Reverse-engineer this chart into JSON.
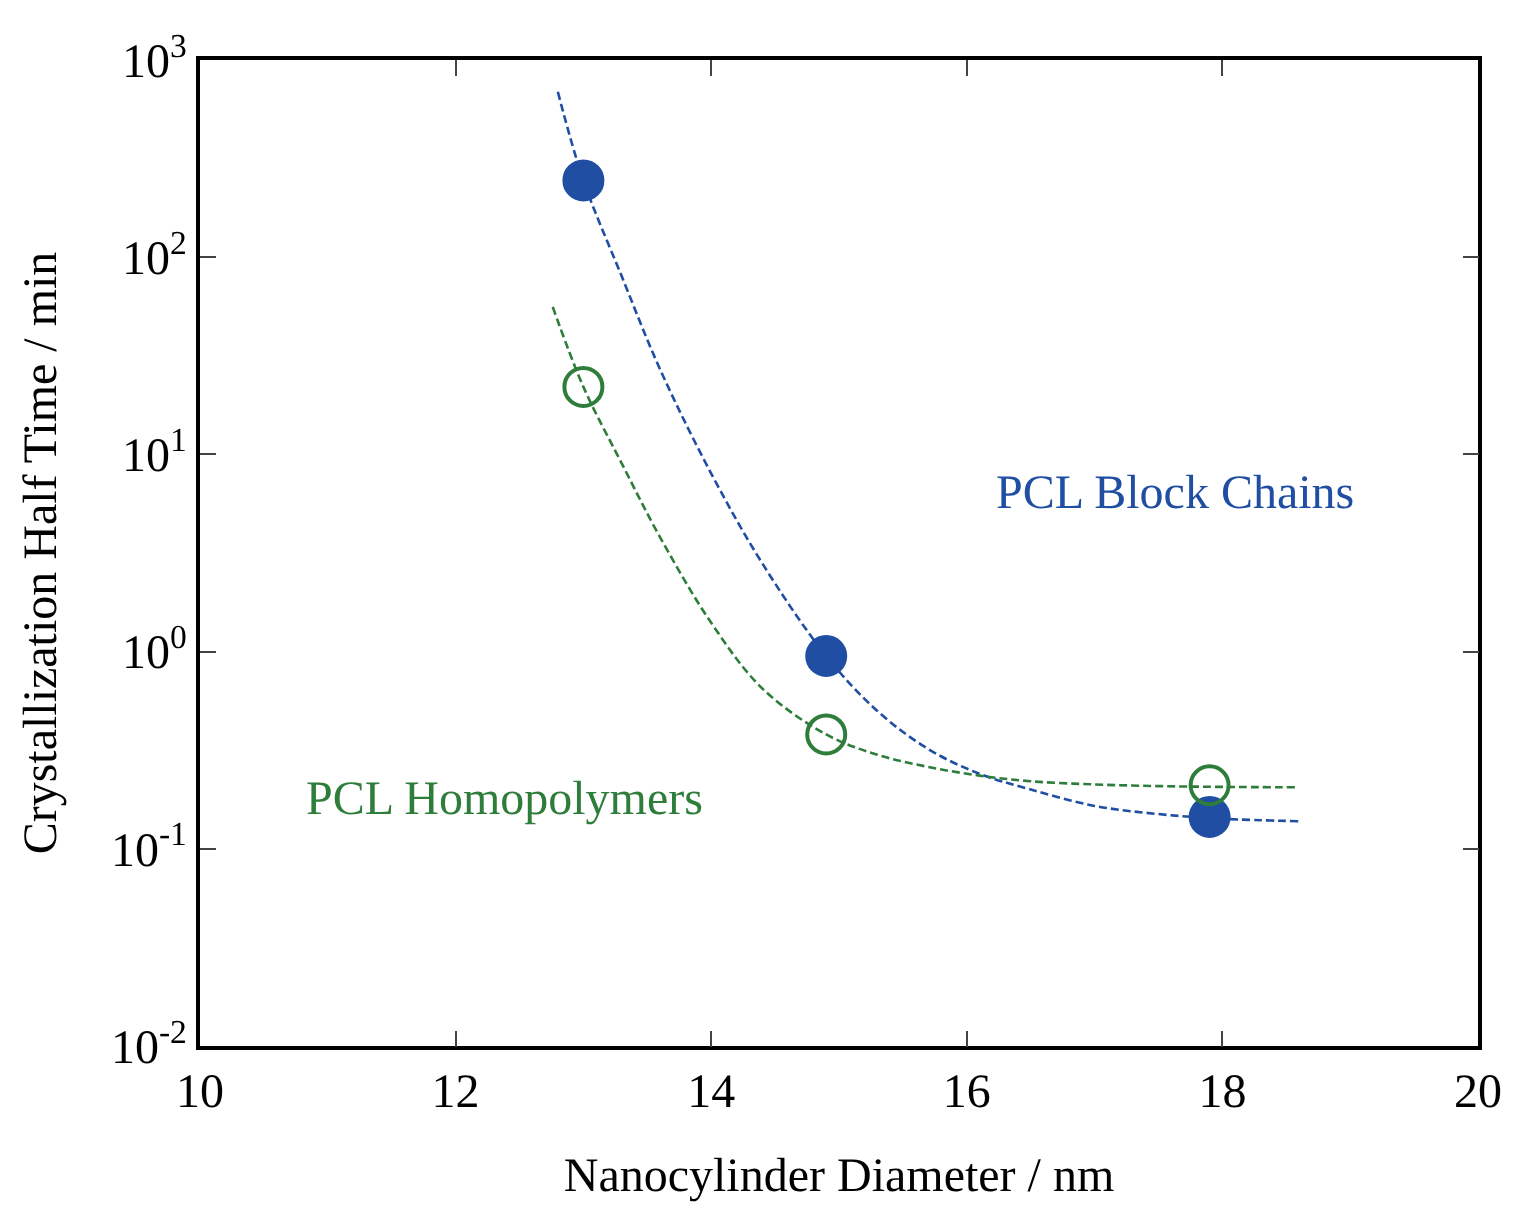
{
  "chart_data": {
    "type": "scatter",
    "xlabel": "Nanocylinder Diameter / nm",
    "ylabel": "Crystallization Half Time / min",
    "log": "y",
    "legend": false,
    "xlim": [
      10,
      20
    ],
    "xticks": [
      10,
      12,
      14,
      16,
      18,
      20
    ],
    "ylim": [
      0.01,
      1000
    ],
    "yticks": [
      {
        "value": 0.01,
        "label": "10$^{-2}$"
      },
      {
        "value": 0.1,
        "label": "10$^{-1}$"
      },
      {
        "value": 1,
        "label": "10$^{0}$"
      },
      {
        "value": 10,
        "label": "10$^{1}$"
      },
      {
        "value": 100,
        "label": "10$^{2}$"
      },
      {
        "value": 1000,
        "label": "10$^{3}$"
      }
    ],
    "series": [
      {
        "type": "line",
        "color": "#1f4ea3",
        "line_style": "dashed",
        "marker": "none",
        "x": [
          12.8,
          13.0,
          13.3,
          13.6,
          14.0,
          14.4,
          14.9,
          15.3,
          15.7,
          16.1,
          16.5,
          17.0,
          17.5,
          18.0,
          18.6
        ],
        "values": [
          690,
          245,
          80,
          27,
          8,
          2.8,
          0.95,
          0.5,
          0.32,
          0.24,
          0.2,
          0.165,
          0.15,
          0.142,
          0.138
        ]
      },
      {
        "type": "line",
        "color": "#2e7d3a",
        "line_style": "dashed",
        "marker": "none",
        "x": [
          12.76,
          13.0,
          13.3,
          13.6,
          14.0,
          14.4,
          14.9,
          15.3,
          15.7,
          16.1,
          16.5,
          17.0,
          17.5,
          18.0,
          18.6
        ],
        "values": [
          56,
          22,
          9,
          3.8,
          1.4,
          0.65,
          0.38,
          0.3,
          0.26,
          0.235,
          0.22,
          0.212,
          0.208,
          0.206,
          0.205
        ]
      },
      {
        "name": "PCL Block Chains",
        "color": "#1f4ea3",
        "marker": "circle",
        "x": [
          13.0,
          14.9,
          17.9
        ],
        "values": [
          245,
          0.95,
          0.145
        ]
      },
      {
        "name": "PCL Homopolymers",
        "color": "#2e7d3a",
        "marker": "circle-open",
        "x": [
          13.0,
          14.9,
          17.9
        ],
        "values": [
          22,
          0.38,
          0.21
        ]
      }
    ]
  }
}
